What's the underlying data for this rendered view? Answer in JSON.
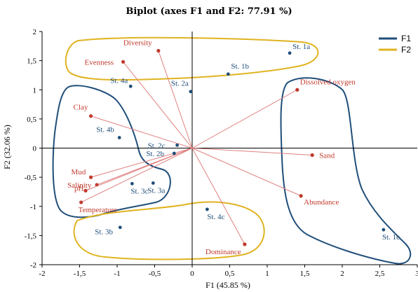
{
  "chart_data": {
    "type": "scatter",
    "title": "Biplot (axes F1 and F2: 77.91 %)",
    "xlabel": "F1 (45.85 %)",
    "ylabel": "F2 (32.06 %)",
    "xlim": [
      -2,
      3
    ],
    "ylim": [
      -2,
      2
    ],
    "xticks": [
      "-2",
      "-1,5",
      "-1",
      "-0,5",
      "0",
      "0,5",
      "1",
      "1,5",
      "2",
      "2,5",
      "3"
    ],
    "yticks": [
      "-2",
      "-1,5",
      "-1",
      "-0,5",
      "0",
      "0,5",
      "1",
      "1,5",
      "2"
    ],
    "grid": false,
    "legend_position": "top-right",
    "legend": [
      {
        "name": "F1",
        "color": "#1f4e79"
      },
      {
        "name": "F2",
        "color": "#e0b320"
      }
    ],
    "variables": [
      {
        "name": "Diversity",
        "x": -0.45,
        "y": 1.67
      },
      {
        "name": "Evenness",
        "x": -0.92,
        "y": 1.48
      },
      {
        "name": "Dissolved oxygen",
        "x": 1.4,
        "y": 1.0
      },
      {
        "name": "Clay",
        "x": -1.35,
        "y": 0.55
      },
      {
        "name": "Sand",
        "x": 1.6,
        "y": -0.12
      },
      {
        "name": "Mud",
        "x": -1.35,
        "y": -0.5
      },
      {
        "name": "Salinity",
        "x": -1.27,
        "y": -0.63
      },
      {
        "name": "pH",
        "x": -1.42,
        "y": -0.73
      },
      {
        "name": "Temperature",
        "x": -1.48,
        "y": -0.93
      },
      {
        "name": "Abundance",
        "x": 1.45,
        "y": -0.82
      },
      {
        "name": "Dominance",
        "x": 0.7,
        "y": -1.65
      }
    ],
    "observations": [
      {
        "name": "St. 1a",
        "x": 1.3,
        "y": 1.63
      },
      {
        "name": "St. 1b",
        "x": 0.48,
        "y": 1.27
      },
      {
        "name": "St. 2a",
        "x": -0.02,
        "y": 0.97
      },
      {
        "name": "St. 4a",
        "x": -0.82,
        "y": 1.06
      },
      {
        "name": "St. 4b",
        "x": -0.97,
        "y": 0.18
      },
      {
        "name": "St. 2c",
        "x": -0.2,
        "y": 0.05
      },
      {
        "name": "St. 2b",
        "x": -0.24,
        "y": -0.09
      },
      {
        "name": "St. 3c",
        "x": -0.8,
        "y": -0.61
      },
      {
        "name": "St. 3a",
        "x": -0.52,
        "y": -0.6
      },
      {
        "name": "St. 4c",
        "x": 0.2,
        "y": -1.05
      },
      {
        "name": "St. 3b",
        "x": -0.96,
        "y": -1.36
      },
      {
        "name": "St. 1c",
        "x": 2.55,
        "y": -1.4
      }
    ]
  }
}
